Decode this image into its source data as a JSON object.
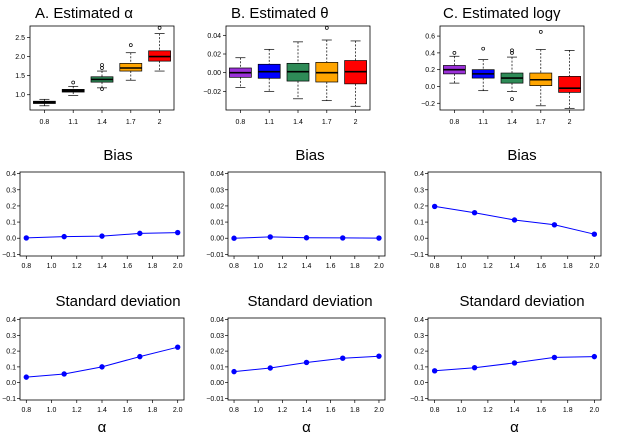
{
  "colors": {
    "box_fills": [
      "#9b30d9",
      "#0000ff",
      "#2e8b57",
      "#ffa500",
      "#ff0000"
    ],
    "line": "#0000ff",
    "point": "#0000ff"
  },
  "chart_data": [
    {
      "id": "box-alpha",
      "type": "box",
      "title": "A.  Estimated α",
      "categories": [
        "0.8",
        "1.1",
        "1.4",
        "1.7",
        "2"
      ],
      "ylim": [
        0.6,
        2.8
      ],
      "yticks": [
        {
          "v": 1.0,
          "label": "1.0"
        },
        {
          "v": 1.5,
          "label": "1.5"
        },
        {
          "v": 2.0,
          "label": "2.0"
        },
        {
          "v": 2.5,
          "label": "2.5"
        }
      ],
      "boxes": [
        {
          "min": 0.71,
          "q1": 0.77,
          "median": 0.8,
          "q3": 0.83,
          "max": 0.88,
          "outliers": [],
          "fill": "#000000"
        },
        {
          "min": 0.98,
          "q1": 1.07,
          "median": 1.1,
          "q3": 1.14,
          "max": 1.22,
          "outliers": [
            1.32
          ],
          "fill": "#000000"
        },
        {
          "min": 1.18,
          "q1": 1.33,
          "median": 1.4,
          "q3": 1.47,
          "max": 1.62,
          "outliers": [
            1.15,
            1.7,
            1.78
          ],
          "fill": "#2e8b57"
        },
        {
          "min": 1.38,
          "q1": 1.62,
          "median": 1.7,
          "q3": 1.82,
          "max": 2.1,
          "outliers": [
            2.3
          ],
          "fill": "#ffa500"
        },
        {
          "min": 1.62,
          "q1": 1.88,
          "median": 2.0,
          "q3": 2.15,
          "max": 2.6,
          "outliers": [
            2.75
          ],
          "fill": "#ff0000"
        }
      ]
    },
    {
      "id": "box-theta",
      "type": "box",
      "title": "B.  Estimated θ",
      "categories": [
        "0.8",
        "1.1",
        "1.4",
        "1.7",
        "2"
      ],
      "ylim": [
        -0.04,
        0.05
      ],
      "yticks": [
        {
          "v": -0.02,
          "label": "−0.02"
        },
        {
          "v": 0.0,
          "label": "0.00"
        },
        {
          "v": 0.02,
          "label": "0.02"
        },
        {
          "v": 0.04,
          "label": "0.04"
        }
      ],
      "boxes": [
        {
          "min": -0.016,
          "q1": -0.005,
          "median": 0.0,
          "q3": 0.005,
          "max": 0.016,
          "outliers": [],
          "fill": "#9b30d9"
        },
        {
          "min": -0.02,
          "q1": -0.006,
          "median": 0.001,
          "q3": 0.009,
          "max": 0.025,
          "outliers": [],
          "fill": "#0000ff"
        },
        {
          "min": -0.028,
          "q1": -0.009,
          "median": 0.001,
          "q3": 0.01,
          "max": 0.033,
          "outliers": [],
          "fill": "#2e8b57"
        },
        {
          "min": -0.03,
          "q1": -0.01,
          "median": 0.0,
          "q3": 0.011,
          "max": 0.035,
          "outliers": [
            0.048
          ],
          "fill": "#ffa500"
        },
        {
          "min": -0.036,
          "q1": -0.012,
          "median": 0.001,
          "q3": 0.013,
          "max": 0.034,
          "outliers": [],
          "fill": "#ff0000"
        }
      ]
    },
    {
      "id": "box-loggamma",
      "type": "box",
      "title": "C.  Estimated logγ",
      "categories": [
        "0.8",
        "1.1",
        "1.4",
        "1.7",
        "2"
      ],
      "ylim": [
        -0.28,
        0.72
      ],
      "yticks": [
        {
          "v": -0.2,
          "label": "−0.2"
        },
        {
          "v": 0.0,
          "label": "0.0"
        },
        {
          "v": 0.2,
          "label": "0.2"
        },
        {
          "v": 0.4,
          "label": "0.4"
        },
        {
          "v": 0.6,
          "label": "0.6"
        }
      ],
      "boxes": [
        {
          "min": 0.04,
          "q1": 0.15,
          "median": 0.2,
          "q3": 0.25,
          "max": 0.36,
          "outliers": [
            0.4
          ],
          "fill": "#9b30d9"
        },
        {
          "min": -0.05,
          "q1": 0.1,
          "median": 0.15,
          "q3": 0.2,
          "max": 0.32,
          "outliers": [
            0.45
          ],
          "fill": "#0000ff"
        },
        {
          "min": -0.06,
          "q1": 0.04,
          "median": 0.1,
          "q3": 0.16,
          "max": 0.35,
          "outliers": [
            0.43,
            0.4,
            -0.15
          ],
          "fill": "#2e8b57"
        },
        {
          "min": -0.23,
          "q1": 0.01,
          "median": 0.08,
          "q3": 0.16,
          "max": 0.44,
          "outliers": [
            0.65
          ],
          "fill": "#ffa500"
        },
        {
          "min": -0.26,
          "q1": -0.07,
          "median": -0.02,
          "q3": 0.12,
          "max": 0.43,
          "outliers": [],
          "fill": "#ff0000"
        }
      ]
    },
    {
      "id": "bias-alpha",
      "type": "line",
      "title": "Bias",
      "x": [
        0.8,
        1.1,
        1.4,
        1.7,
        2.0
      ],
      "y": [
        0.002,
        0.01,
        0.013,
        0.03,
        0.035
      ],
      "xlim": [
        0.75,
        2.05
      ],
      "ylim": [
        -0.11,
        0.41
      ],
      "xticks": [
        {
          "v": 0.8,
          "label": "0.8"
        },
        {
          "v": 1.0,
          "label": "1.0"
        },
        {
          "v": 1.2,
          "label": "1.2"
        },
        {
          "v": 1.4,
          "label": "1.4"
        },
        {
          "v": 1.6,
          "label": "1.6"
        },
        {
          "v": 1.8,
          "label": "1.8"
        },
        {
          "v": 2.0,
          "label": "2.0"
        }
      ],
      "yticks": [
        {
          "v": -0.1,
          "label": "−0.1"
        },
        {
          "v": 0.0,
          "label": "0.0"
        },
        {
          "v": 0.1,
          "label": "0.1"
        },
        {
          "v": 0.2,
          "label": "0.2"
        },
        {
          "v": 0.3,
          "label": "0.3"
        },
        {
          "v": 0.4,
          "label": "0.4"
        }
      ],
      "xlabel": ""
    },
    {
      "id": "bias-theta",
      "type": "line",
      "title": "Bias",
      "x": [
        0.8,
        1.1,
        1.4,
        1.7,
        2.0
      ],
      "y": [
        0.0,
        0.0008,
        0.0003,
        0.0002,
        0.0001
      ],
      "xlim": [
        0.75,
        2.05
      ],
      "ylim": [
        -0.011,
        0.041
      ],
      "xticks": [
        {
          "v": 0.8,
          "label": "0.8"
        },
        {
          "v": 1.0,
          "label": "1.0"
        },
        {
          "v": 1.2,
          "label": "1.2"
        },
        {
          "v": 1.4,
          "label": "1.4"
        },
        {
          "v": 1.6,
          "label": "1.6"
        },
        {
          "v": 1.8,
          "label": "1.8"
        },
        {
          "v": 2.0,
          "label": "2.0"
        }
      ],
      "yticks": [
        {
          "v": -0.01,
          "label": "−0.01"
        },
        {
          "v": 0.0,
          "label": "0.00"
        },
        {
          "v": 0.01,
          "label": "0.01"
        },
        {
          "v": 0.02,
          "label": "0.02"
        },
        {
          "v": 0.03,
          "label": "0.03"
        },
        {
          "v": 0.04,
          "label": "0.04"
        }
      ],
      "xlabel": ""
    },
    {
      "id": "bias-loggamma",
      "type": "line",
      "title": "Bias",
      "x": [
        0.8,
        1.1,
        1.4,
        1.7,
        2.0
      ],
      "y": [
        0.197,
        0.158,
        0.113,
        0.083,
        0.025
      ],
      "xlim": [
        0.75,
        2.05
      ],
      "ylim": [
        -0.11,
        0.41
      ],
      "xticks": [
        {
          "v": 0.8,
          "label": "0.8"
        },
        {
          "v": 1.0,
          "label": "1.0"
        },
        {
          "v": 1.2,
          "label": "1.2"
        },
        {
          "v": 1.4,
          "label": "1.4"
        },
        {
          "v": 1.6,
          "label": "1.6"
        },
        {
          "v": 1.8,
          "label": "1.8"
        },
        {
          "v": 2.0,
          "label": "2.0"
        }
      ],
      "yticks": [
        {
          "v": -0.1,
          "label": "−0.1"
        },
        {
          "v": 0.0,
          "label": "0.0"
        },
        {
          "v": 0.1,
          "label": "0.1"
        },
        {
          "v": 0.2,
          "label": "0.2"
        },
        {
          "v": 0.3,
          "label": "0.3"
        },
        {
          "v": 0.4,
          "label": "0.4"
        }
      ],
      "xlabel": ""
    },
    {
      "id": "sd-alpha",
      "type": "line",
      "title": "Standard deviation",
      "x": [
        0.8,
        1.1,
        1.4,
        1.7,
        2.0
      ],
      "y": [
        0.035,
        0.055,
        0.1,
        0.165,
        0.225
      ],
      "xlim": [
        0.75,
        2.05
      ],
      "ylim": [
        -0.11,
        0.41
      ],
      "xticks": [
        {
          "v": 0.8,
          "label": "0.8"
        },
        {
          "v": 1.0,
          "label": "1.0"
        },
        {
          "v": 1.2,
          "label": "1.2"
        },
        {
          "v": 1.4,
          "label": "1.4"
        },
        {
          "v": 1.6,
          "label": "1.6"
        },
        {
          "v": 1.8,
          "label": "1.8"
        },
        {
          "v": 2.0,
          "label": "2.0"
        }
      ],
      "yticks": [
        {
          "v": -0.1,
          "label": "−0.1"
        },
        {
          "v": 0.0,
          "label": "0.0"
        },
        {
          "v": 0.1,
          "label": "0.1"
        },
        {
          "v": 0.2,
          "label": "0.2"
        },
        {
          "v": 0.3,
          "label": "0.3"
        },
        {
          "v": 0.4,
          "label": "0.4"
        }
      ],
      "xlabel": "α"
    },
    {
      "id": "sd-theta",
      "type": "line",
      "title": "Standard deviation",
      "x": [
        0.8,
        1.1,
        1.4,
        1.7,
        2.0
      ],
      "y": [
        0.007,
        0.0093,
        0.0128,
        0.0155,
        0.0168
      ],
      "xlim": [
        0.75,
        2.05
      ],
      "ylim": [
        -0.011,
        0.041
      ],
      "xticks": [
        {
          "v": 0.8,
          "label": "0.8"
        },
        {
          "v": 1.0,
          "label": "1.0"
        },
        {
          "v": 1.2,
          "label": "1.2"
        },
        {
          "v": 1.4,
          "label": "1.4"
        },
        {
          "v": 1.6,
          "label": "1.6"
        },
        {
          "v": 1.8,
          "label": "1.8"
        },
        {
          "v": 2.0,
          "label": "2.0"
        }
      ],
      "yticks": [
        {
          "v": -0.01,
          "label": "−0.01"
        },
        {
          "v": 0.0,
          "label": "0.00"
        },
        {
          "v": 0.01,
          "label": "0.01"
        },
        {
          "v": 0.02,
          "label": "0.02"
        },
        {
          "v": 0.03,
          "label": "0.03"
        },
        {
          "v": 0.04,
          "label": "0.04"
        }
      ],
      "xlabel": "α"
    },
    {
      "id": "sd-loggamma",
      "type": "line",
      "title": "Standard deviation",
      "x": [
        0.8,
        1.1,
        1.4,
        1.7,
        2.0
      ],
      "y": [
        0.075,
        0.095,
        0.125,
        0.16,
        0.165
      ],
      "xlim": [
        0.75,
        2.05
      ],
      "ylim": [
        -0.11,
        0.41
      ],
      "xticks": [
        {
          "v": 0.8,
          "label": "0.8"
        },
        {
          "v": 1.0,
          "label": "1.0"
        },
        {
          "v": 1.2,
          "label": "1.2"
        },
        {
          "v": 1.4,
          "label": "1.4"
        },
        {
          "v": 1.6,
          "label": "1.6"
        },
        {
          "v": 1.8,
          "label": "1.8"
        },
        {
          "v": 2.0,
          "label": "2.0"
        }
      ],
      "yticks": [
        {
          "v": -0.1,
          "label": "−0.1"
        },
        {
          "v": 0.0,
          "label": "0.0"
        },
        {
          "v": 0.1,
          "label": "0.1"
        },
        {
          "v": 0.2,
          "label": "0.2"
        },
        {
          "v": 0.3,
          "label": "0.3"
        },
        {
          "v": 0.4,
          "label": "0.4"
        }
      ],
      "xlabel": "α"
    }
  ]
}
